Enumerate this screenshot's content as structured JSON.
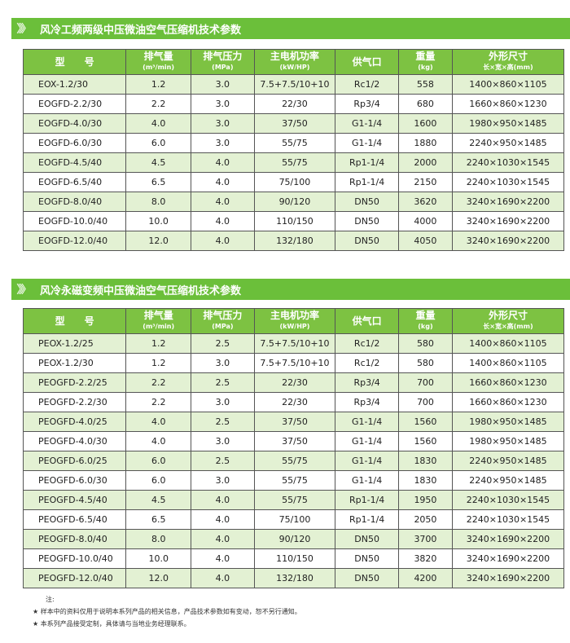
{
  "tables": [
    {
      "title": "风冷工频两级中压微油空气压缩机技术参数",
      "rows": [
        [
          "EOX-1.2/30",
          "1.2",
          "3.0",
          "7.5+7.5/10+10",
          "Rc1/2",
          "558",
          "1400×860×1105"
        ],
        [
          "EOGFD-2.2/30",
          "2.2",
          "3.0",
          "22/30",
          "Rp3/4",
          "680",
          "1660×860×1230"
        ],
        [
          "EOGFD-4.0/30",
          "4.0",
          "3.0",
          "37/50",
          "G1-1/4",
          "1600",
          "1980×950×1485"
        ],
        [
          "EOGFD-6.0/30",
          "6.0",
          "3.0",
          "55/75",
          "G1-1/4",
          "1880",
          "2240×950×1485"
        ],
        [
          "EOGFD-4.5/40",
          "4.5",
          "4.0",
          "55/75",
          "Rp1-1/4",
          "2000",
          "2240×1030×1545"
        ],
        [
          "EOGFD-6.5/40",
          "6.5",
          "4.0",
          "75/100",
          "Rp1-1/4",
          "2150",
          "2240×1030×1545"
        ],
        [
          "EOGFD-8.0/40",
          "8.0",
          "4.0",
          "90/120",
          "DN50",
          "3620",
          "3240×1690×2200"
        ],
        [
          "EOGFD-10.0/40",
          "10.0",
          "4.0",
          "110/150",
          "DN50",
          "4000",
          "3240×1690×2200"
        ],
        [
          "EOGFD-12.0/40",
          "12.0",
          "4.0",
          "132/180",
          "DN50",
          "4050",
          "3240×1690×2200"
        ]
      ]
    },
    {
      "title": "风冷永磁变频中压微油空气压缩机技术参数",
      "rows": [
        [
          "PEOX-1.2/25",
          "1.2",
          "2.5",
          "7.5+7.5/10+10",
          "Rc1/2",
          "580",
          "1400×860×1105"
        ],
        [
          "PEOX-1.2/30",
          "1.2",
          "3.0",
          "7.5+7.5/10+10",
          "Rc1/2",
          "580",
          "1400×860×1105"
        ],
        [
          "PEOGFD-2.2/25",
          "2.2",
          "2.5",
          "22/30",
          "Rp3/4",
          "700",
          "1660×860×1230"
        ],
        [
          "PEOGFD-2.2/30",
          "2.2",
          "3.0",
          "22/30",
          "Rp3/4",
          "700",
          "1660×860×1230"
        ],
        [
          "PEOGFD-4.0/25",
          "4.0",
          "2.5",
          "37/50",
          "G1-1/4",
          "1560",
          "1980×950×1485"
        ],
        [
          "PEOGFD-4.0/30",
          "4.0",
          "3.0",
          "37/50",
          "G1-1/4",
          "1560",
          "1980×950×1485"
        ],
        [
          "PEOGFD-6.0/25",
          "6.0",
          "2.5",
          "55/75",
          "G1-1/4",
          "1830",
          "2240×950×1485"
        ],
        [
          "PEOGFD-6.0/30",
          "6.0",
          "3.0",
          "55/75",
          "G1-1/4",
          "1830",
          "2240×950×1485"
        ],
        [
          "PEOGFD-4.5/40",
          "4.5",
          "4.0",
          "55/75",
          "Rp1-1/4",
          "1950",
          "2240×1030×1545"
        ],
        [
          "PEOGFD-6.5/40",
          "6.5",
          "4.0",
          "75/100",
          "Rp1-1/4",
          "2050",
          "2240×1030×1545"
        ],
        [
          "PEOGFD-8.0/40",
          "8.0",
          "4.0",
          "90/120",
          "DN50",
          "3700",
          "3240×1690×2200"
        ],
        [
          "PEOGFD-10.0/40",
          "10.0",
          "4.0",
          "110/150",
          "DN50",
          "3820",
          "3240×1690×2200"
        ],
        [
          "PEOGFD-12.0/40",
          "12.0",
          "4.0",
          "132/180",
          "DN50",
          "4200",
          "3240×1690×2200"
        ]
      ]
    }
  ],
  "headers": [
    {
      "main": "型　　号",
      "sub": ""
    },
    {
      "main": "排气量",
      "sub": "(m³/min)"
    },
    {
      "main": "排气压力",
      "sub": "(MPa)"
    },
    {
      "main": "主电机功率",
      "sub": "(kW/HP)"
    },
    {
      "main": "供气口",
      "sub": ""
    },
    {
      "main": "重量",
      "sub": "(kg)"
    },
    {
      "main": "外形尺寸",
      "sub": "长×宽×高(mm)"
    }
  ],
  "notes": {
    "label": "注:",
    "items": [
      "样本中的资料仅用于说明本系列产品的相关信息，产品技术参数如有变动，恕不另行通知。",
      "本系列产品接受定制，具体请与当地业务经理联系。"
    ]
  },
  "colors": {
    "banner": "#6bbf3a",
    "header": "#7dc242",
    "row_alt": "#e3f1d3"
  }
}
